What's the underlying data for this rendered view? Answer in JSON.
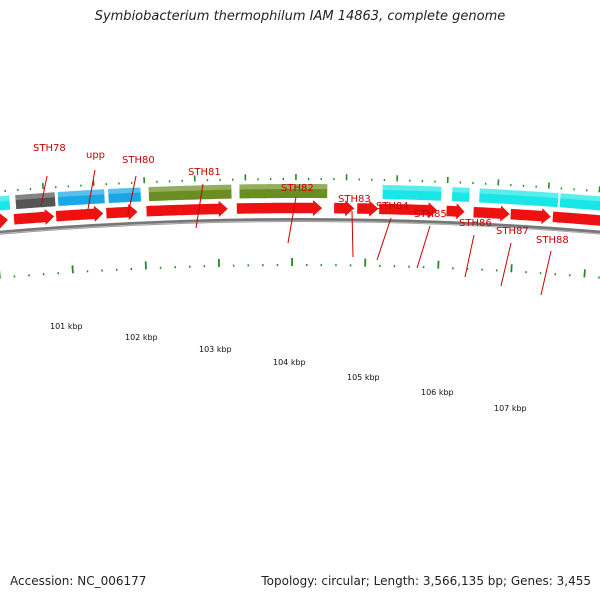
{
  "title": "Symbiobacterium thermophilum IAM 14863, complete genome",
  "footer": {
    "accession": "Accession: NC_006177",
    "summary": "Topology: circular; Length: 3,566,135 bp; Genes: 3,455"
  },
  "colors": {
    "backbone": "#777777",
    "arrow": "#ee1111",
    "olive": "#6b8e23",
    "sky": "#1aa7e6",
    "cyan": "#19e6e6",
    "gray": "#555555",
    "tick": "#228b22",
    "label": "#cc0000"
  },
  "gene_labels": [
    "STH78",
    "upp",
    "STH80",
    "STH81",
    "STH82",
    "STH83",
    "STH84",
    "STH85",
    "STH86",
    "STH87",
    "STH88"
  ],
  "kbp_labels": [
    "101 kbp",
    "102 kbp",
    "103 kbp",
    "104 kbp",
    "105 kbp",
    "106 kbp",
    "107 kbp"
  ]
}
